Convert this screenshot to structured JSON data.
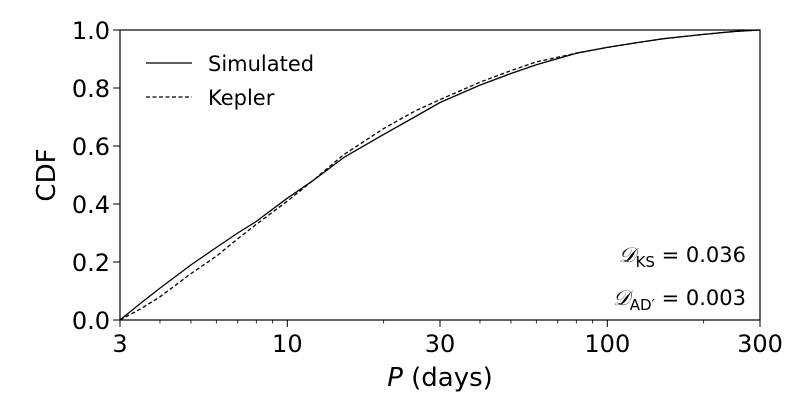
{
  "chart_data": {
    "type": "line",
    "x_scale": "log",
    "xlim": [
      3,
      300
    ],
    "ylim": [
      0.0,
      1.0
    ],
    "x_ticks": [
      3,
      10,
      30,
      100,
      300
    ],
    "x_tick_labels": [
      "3",
      "10",
      "30",
      "100",
      "300"
    ],
    "y_ticks": [
      0.0,
      0.2,
      0.4,
      0.6,
      0.8,
      1.0
    ],
    "y_tick_labels": [
      "0.0",
      "0.2",
      "0.4",
      "0.6",
      "0.8",
      "1.0"
    ],
    "xlabel_symbol": "P",
    "xlabel_unit": "(days)",
    "ylabel": "CDF",
    "legend_position": "top-left",
    "grid": false,
    "series": [
      {
        "name": "Simulated",
        "style": "solid",
        "color": "#000000",
        "x": [
          3,
          3.5,
          4,
          5,
          6,
          7,
          8,
          10,
          12,
          15,
          20,
          25,
          30,
          40,
          50,
          60,
          80,
          100,
          130,
          150,
          200,
          250,
          300
        ],
        "y": [
          0.0,
          0.06,
          0.11,
          0.19,
          0.25,
          0.3,
          0.34,
          0.42,
          0.48,
          0.56,
          0.64,
          0.7,
          0.75,
          0.81,
          0.85,
          0.88,
          0.92,
          0.94,
          0.96,
          0.97,
          0.985,
          0.995,
          1.0
        ]
      },
      {
        "name": "Kepler",
        "style": "dashed",
        "color": "#000000",
        "x": [
          3,
          3.5,
          4,
          5,
          6,
          7,
          8,
          10,
          12,
          15,
          20,
          25,
          30,
          40,
          50,
          60,
          80,
          100,
          130,
          150,
          200,
          250,
          300
        ],
        "y": [
          0.0,
          0.04,
          0.08,
          0.16,
          0.22,
          0.28,
          0.33,
          0.41,
          0.48,
          0.57,
          0.66,
          0.72,
          0.76,
          0.82,
          0.86,
          0.89,
          0.92,
          0.94,
          0.96,
          0.97,
          0.985,
          0.995,
          1.0
        ]
      }
    ],
    "annotations": [
      {
        "symbol": "𝒟",
        "subscript": "KS",
        "prime": "",
        "text": "= 0.036"
      },
      {
        "symbol": "𝒟",
        "subscript": "AD",
        "prime": "′",
        "text": "= 0.003"
      }
    ]
  }
}
